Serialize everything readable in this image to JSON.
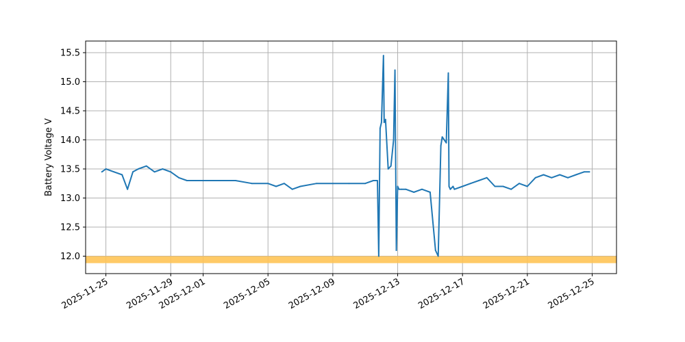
{
  "chart_data": {
    "type": "line",
    "title": "",
    "xlabel": "",
    "ylabel": "Battery Voltage V",
    "grid": true,
    "legend": "none",
    "xlim": [
      "2025-11-23T18:00",
      "2025-12-26T12:00"
    ],
    "ylim": [
      11.7,
      15.7
    ],
    "x_ticks": [
      "2025-11-25",
      "2025-11-29",
      "2025-12-01",
      "2025-12-05",
      "2025-12-09",
      "2025-12-13",
      "2025-12-17",
      "2025-12-21",
      "2025-12-25"
    ],
    "y_ticks": [
      "12.0",
      "12.5",
      "13.0",
      "13.5",
      "14.0",
      "14.5",
      "15.0",
      "15.5"
    ],
    "threshold_band": {
      "y_range": [
        11.88,
        12.0
      ],
      "color": "#ffc456"
    },
    "series": [
      {
        "color": "#1f77b4",
        "x": [
          "2025-11-24T18:00",
          "2025-11-25T00:00",
          "2025-11-25T12:00",
          "2025-11-26T00:00",
          "2025-11-26T08:00",
          "2025-11-26T16:00",
          "2025-11-27T00:00",
          "2025-11-27T12:00",
          "2025-11-28T00:00",
          "2025-11-28T12:00",
          "2025-11-29T00:00",
          "2025-11-29T12:00",
          "2025-11-30T00:00",
          "2025-11-30T12:00",
          "2025-12-01T00:00",
          "2025-12-02T00:00",
          "2025-12-03T00:00",
          "2025-12-04T00:00",
          "2025-12-05T00:00",
          "2025-12-05T12:00",
          "2025-12-06T00:00",
          "2025-12-06T12:00",
          "2025-12-07T00:00",
          "2025-12-08T00:00",
          "2025-12-09T00:00",
          "2025-12-10T00:00",
          "2025-12-11T00:00",
          "2025-12-11T12:00",
          "2025-12-11T18:00",
          "2025-12-11T20:00",
          "2025-12-11T22:00",
          "2025-12-12T00:00",
          "2025-12-12T03:00",
          "2025-12-12T04:00",
          "2025-12-12T06:00",
          "2025-12-12T10:00",
          "2025-12-12T14:00",
          "2025-12-12T18:00",
          "2025-12-12T20:00",
          "2025-12-12T22:00",
          "2025-12-13T00:00",
          "2025-12-13T02:00",
          "2025-12-13T06:00",
          "2025-12-13T12:00",
          "2025-12-14T00:00",
          "2025-12-14T12:00",
          "2025-12-15T00:00",
          "2025-12-15T08:00",
          "2025-12-15T12:00",
          "2025-12-15T16:00",
          "2025-12-15T18:00",
          "2025-12-16T00:00",
          "2025-12-16T03:00",
          "2025-12-16T04:00",
          "2025-12-16T06:00",
          "2025-12-16T10:00",
          "2025-12-16T12:00",
          "2025-12-17T00:00",
          "2025-12-17T12:00",
          "2025-12-18T00:00",
          "2025-12-18T12:00",
          "2025-12-19T00:00",
          "2025-12-19T12:00",
          "2025-12-20T00:00",
          "2025-12-20T12:00",
          "2025-12-21T00:00",
          "2025-12-21T12:00",
          "2025-12-22T00:00",
          "2025-12-22T12:00",
          "2025-12-23T00:00",
          "2025-12-23T12:00",
          "2025-12-24T00:00",
          "2025-12-24T12:00",
          "2025-12-24T20:00"
        ],
        "y": [
          13.45,
          13.5,
          13.45,
          13.4,
          13.15,
          13.45,
          13.5,
          13.55,
          13.45,
          13.5,
          13.45,
          13.35,
          13.3,
          13.3,
          13.3,
          13.3,
          13.3,
          13.25,
          13.25,
          13.2,
          13.25,
          13.15,
          13.2,
          13.25,
          13.25,
          13.25,
          13.25,
          13.3,
          13.3,
          12.0,
          14.2,
          14.3,
          15.45,
          14.3,
          14.35,
          13.5,
          13.55,
          14.0,
          15.2,
          12.1,
          13.2,
          13.15,
          13.15,
          13.15,
          13.1,
          13.15,
          13.1,
          12.1,
          12.0,
          13.9,
          14.05,
          13.95,
          15.15,
          13.2,
          13.15,
          13.2,
          13.15,
          13.2,
          13.25,
          13.3,
          13.35,
          13.2,
          13.2,
          13.15,
          13.25,
          13.2,
          13.35,
          13.4,
          13.35,
          13.4,
          13.35,
          13.4,
          13.45,
          13.45
        ]
      }
    ]
  }
}
